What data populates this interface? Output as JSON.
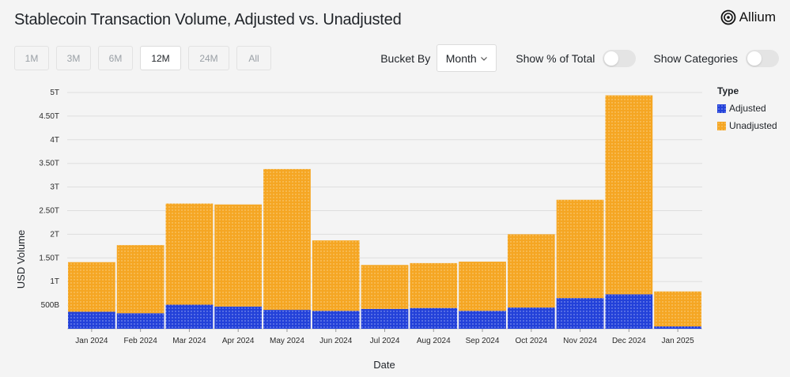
{
  "header": {
    "title": "Stablecoin Transaction Volume, Adjusted vs. Unadjusted",
    "brand": "Allium"
  },
  "range_buttons": [
    "1M",
    "3M",
    "6M",
    "12M",
    "24M",
    "All"
  ],
  "range_selected": "12M",
  "controls": {
    "bucket_label": "Bucket By",
    "bucket_value": "Month",
    "percent_label": "Show % of Total",
    "categories_label": "Show Categories"
  },
  "legend": {
    "title": "Type",
    "items": [
      "Adjusted",
      "Unadjusted"
    ]
  },
  "colors": {
    "adjusted": "#2341d9",
    "unadjusted": "#f5a623",
    "grid": "#dedede"
  },
  "chart_data": {
    "type": "bar",
    "stacked": true,
    "title": "Stablecoin Transaction Volume, Adjusted vs. Unadjusted",
    "xlabel": "Date",
    "ylabel": "USD Volume",
    "categories": [
      "Jan 2024",
      "Feb 2024",
      "Mar 2024",
      "Apr 2024",
      "May 2024",
      "Jun 2024",
      "Jul 2024",
      "Aug 2024",
      "Sep 2024",
      "Oct 2024",
      "Nov 2024",
      "Dec 2024",
      "Jan 2025"
    ],
    "series": [
      {
        "name": "Adjusted",
        "values": [
          0.36,
          0.33,
          0.51,
          0.47,
          0.4,
          0.38,
          0.42,
          0.44,
          0.38,
          0.45,
          0.65,
          0.73,
          0.05
        ]
      },
      {
        "name": "Unadjusted",
        "values": [
          1.05,
          1.44,
          2.14,
          2.16,
          2.98,
          1.49,
          0.93,
          0.95,
          1.04,
          1.55,
          2.08,
          4.21,
          0.74
        ]
      }
    ],
    "unit": "trillion USD",
    "ylim": [
      0,
      5
    ],
    "yticks": [
      0.5,
      1,
      1.5,
      2,
      2.5,
      3,
      3.5,
      4,
      4.5,
      5
    ],
    "ytick_labels": [
      "500B",
      "1T",
      "1.50T",
      "2T",
      "2.50T",
      "3T",
      "3.50T",
      "4T",
      "4.50T",
      "5T"
    ],
    "grid": true,
    "legend_position": "top-right"
  }
}
